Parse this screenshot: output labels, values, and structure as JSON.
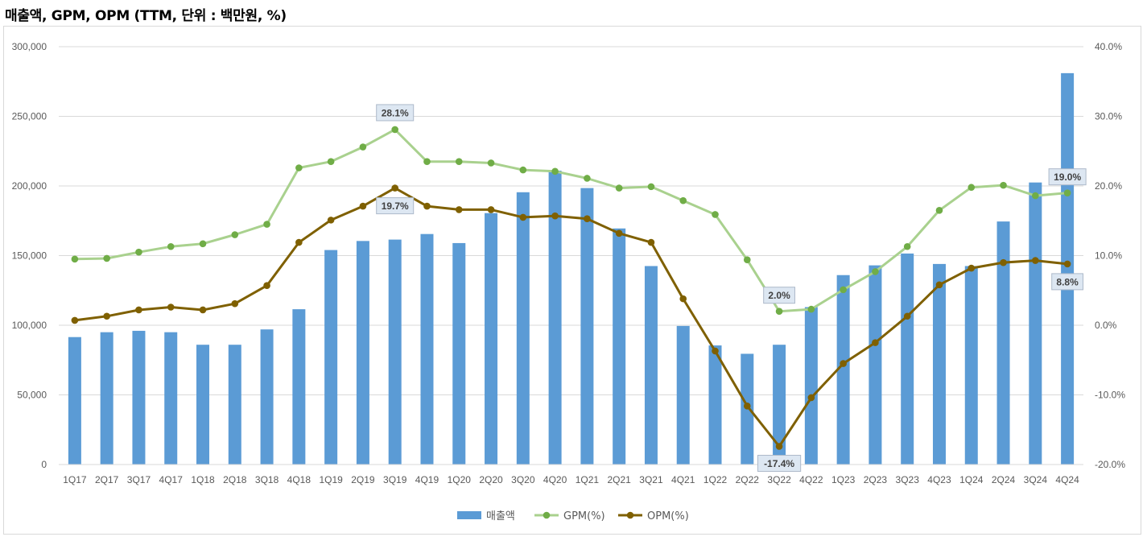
{
  "chart_data": {
    "type": "bar+line",
    "title": "매출액, GPM, OPM (TTM, 단위 : 백만원, %)",
    "categories": [
      "1Q17",
      "2Q17",
      "3Q17",
      "4Q17",
      "1Q18",
      "2Q18",
      "3Q18",
      "4Q18",
      "1Q19",
      "2Q19",
      "3Q19",
      "4Q19",
      "1Q20",
      "2Q20",
      "3Q20",
      "4Q20",
      "1Q21",
      "2Q21",
      "3Q21",
      "4Q21",
      "1Q22",
      "2Q22",
      "3Q22",
      "4Q22",
      "1Q23",
      "2Q23",
      "3Q23",
      "4Q23",
      "1Q24",
      "2Q24",
      "3Q24",
      "4Q24"
    ],
    "series": [
      {
        "name": "매출액",
        "type": "bar",
        "axis": "left",
        "color": "#5b9bd5",
        "values": [
          91500,
          95000,
          96000,
          95000,
          86000,
          86000,
          97000,
          111500,
          154000,
          160500,
          161500,
          165500,
          159000,
          180500,
          195500,
          211000,
          198500,
          169500,
          142500,
          99500,
          85500,
          79500,
          86000,
          113000,
          136000,
          143000,
          151500,
          144000,
          142500,
          174500,
          202500,
          281000
        ]
      },
      {
        "name": "GPM(%)",
        "type": "line",
        "axis": "right",
        "color": "#a9d18e",
        "marker": "#70ad47",
        "values": [
          9.5,
          9.6,
          10.5,
          11.3,
          11.7,
          13.0,
          14.5,
          22.6,
          23.5,
          25.6,
          28.1,
          23.5,
          23.5,
          23.3,
          22.3,
          22.1,
          21.1,
          19.7,
          19.9,
          17.9,
          15.9,
          9.4,
          2.0,
          2.3,
          5.1,
          7.7,
          11.3,
          16.5,
          19.8,
          20.1,
          18.6,
          19.0
        ]
      },
      {
        "name": "OPM(%)",
        "type": "line",
        "axis": "right",
        "color": "#7f6000",
        "marker": "#7f6000",
        "values": [
          0.7,
          1.3,
          2.2,
          2.6,
          2.2,
          3.1,
          5.7,
          11.9,
          15.1,
          17.1,
          19.7,
          17.1,
          16.6,
          16.6,
          15.5,
          15.7,
          15.3,
          13.2,
          11.9,
          3.8,
          -3.7,
          -11.6,
          -17.4,
          -10.4,
          -5.5,
          -2.5,
          1.3,
          5.8,
          8.2,
          9.0,
          9.3,
          8.8
        ]
      }
    ],
    "y_left": {
      "min": 0,
      "max": 300000,
      "ticks": [
        "0",
        "50,000",
        "100,000",
        "150,000",
        "200,000",
        "250,000",
        "300,000"
      ]
    },
    "y_right": {
      "min": -20,
      "max": 40,
      "ticks": [
        "-20.0%",
        "-10.0%",
        "0.0%",
        "10.0%",
        "20.0%",
        "30.0%",
        "40.0%"
      ]
    },
    "annotations": [
      {
        "series": "GPM(%)",
        "category": "3Q19",
        "text": "28.1%"
      },
      {
        "series": "OPM(%)",
        "category": "3Q19",
        "text": "19.7%"
      },
      {
        "series": "GPM(%)",
        "category": "3Q22",
        "text": "2.0%"
      },
      {
        "series": "OPM(%)",
        "category": "3Q22",
        "text": "-17.4%"
      },
      {
        "series": "GPM(%)",
        "category": "4Q24",
        "text": "19.0%"
      },
      {
        "series": "OPM(%)",
        "category": "4Q24",
        "text": "8.8%"
      }
    ],
    "grid": true,
    "legend": "bottom-center"
  }
}
